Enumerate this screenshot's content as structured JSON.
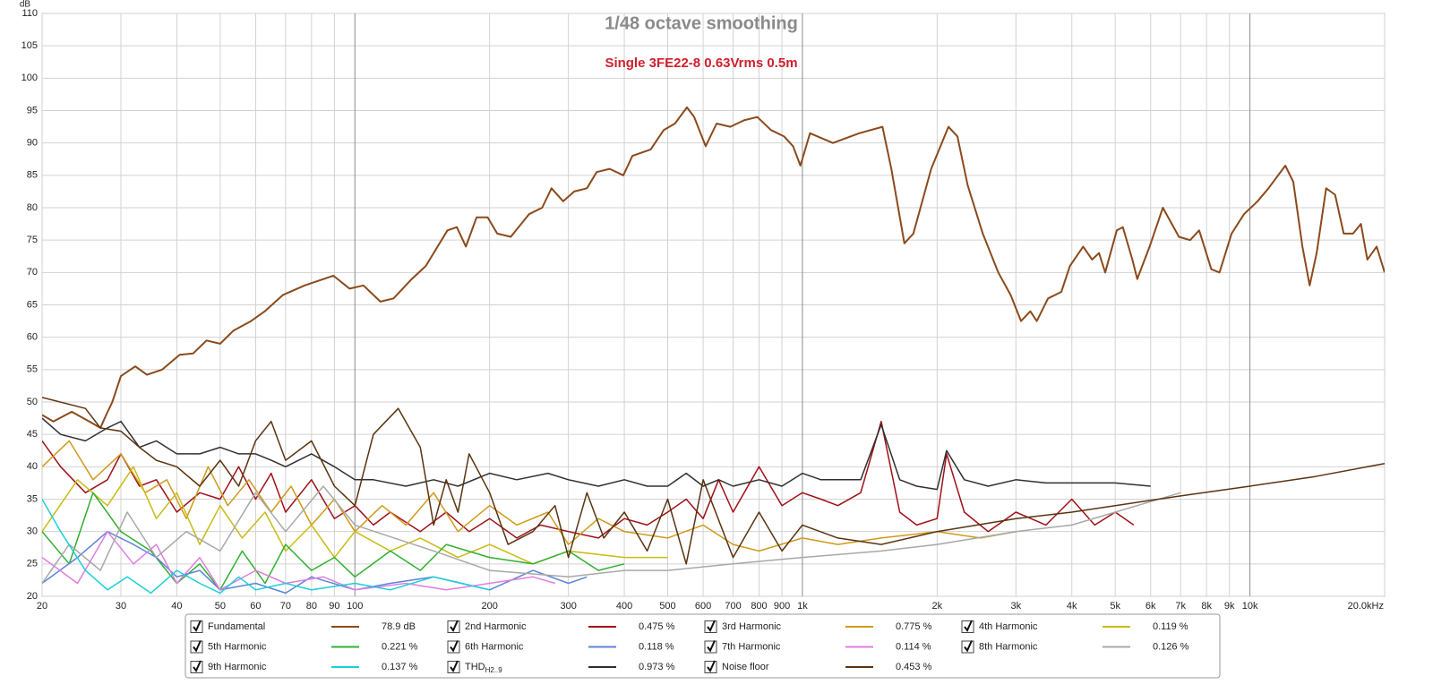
{
  "chart_data": {
    "type": "line",
    "title": "1/48 octave smoothing",
    "subtitle": "Single 3FE22-8 0.63Vrms  0.5m",
    "y_label": "dB",
    "xscale": "log",
    "grid": true,
    "xlim": [
      20,
      20000
    ],
    "ylim": [
      20,
      110
    ],
    "xticks": [
      20,
      30,
      40,
      50,
      60,
      70,
      80,
      90,
      100,
      200,
      300,
      400,
      500,
      600,
      700,
      800,
      900,
      {
        "value": 1000,
        "label": "1k"
      },
      {
        "value": 2000,
        "label": "2k"
      },
      {
        "value": 3000,
        "label": "3k"
      },
      {
        "value": 4000,
        "label": "4k"
      },
      {
        "value": 5000,
        "label": "5k"
      },
      {
        "value": 6000,
        "label": "6k"
      },
      {
        "value": 7000,
        "label": "7k"
      },
      {
        "value": 8000,
        "label": "8k"
      },
      {
        "value": 9000,
        "label": "9k"
      },
      {
        "value": 10000,
        "label": "10k"
      },
      {
        "value": 20000,
        "label": "20.0kHz"
      }
    ],
    "yticks": [
      20,
      25,
      30,
      35,
      40,
      45,
      50,
      55,
      60,
      65,
      70,
      75,
      80,
      85,
      90,
      95,
      100,
      105,
      110
    ],
    "series": [
      {
        "name": "Fundamental",
        "color": "#8b4a1c",
        "checked": true,
        "summary": {
          "value": 78.9,
          "label": "78.9 dB"
        },
        "x": [
          20,
          21.2,
          23.3,
          25.5,
          27,
          27.8,
          28.7,
          30,
          32.3,
          34.3,
          37.1,
          40.6,
          43.5,
          46.6,
          50,
          53.5,
          58.6,
          62.9,
          69,
          77.2,
          89.5,
          97.3,
          104.5,
          114,
          122,
          134,
          144,
          161,
          169,
          177,
          187,
          198,
          208,
          223,
          245,
          262,
          275,
          292,
          309,
          330,
          347,
          371,
          398,
          417,
          458,
          490,
          519,
          552,
          573,
          608,
          643,
          690,
          740,
          793,
          850,
          910,
          953,
          990,
          1040,
          1170,
          1340,
          1510,
          1580,
          1690,
          1770,
          1940,
          2120,
          2220,
          2340,
          2530,
          2740,
          2920,
          3080,
          3230,
          3340,
          3540,
          3790,
          3960,
          4240,
          4440,
          4600,
          4750,
          5040,
          5200,
          5460,
          5600,
          5970,
          6390,
          6940,
          7350,
          7700,
          8200,
          8550,
          9100,
          9700,
          10400,
          11000,
          12000,
          12500,
          13100,
          13600,
          14100,
          14800,
          15500,
          16200,
          17000,
          17700,
          18300,
          19200,
          20000
        ],
        "values": [
          48,
          47,
          48.5,
          47,
          46,
          48,
          50,
          54,
          55.5,
          54.2,
          55,
          57.3,
          57.5,
          59.5,
          59,
          61,
          62.5,
          64,
          66.5,
          68,
          69.5,
          67.5,
          68,
          65.5,
          66,
          69,
          71,
          76.5,
          77,
          74,
          78.5,
          78.5,
          76,
          75.5,
          79,
          80,
          83,
          81,
          82.5,
          83,
          85.5,
          86,
          85,
          88,
          89,
          92,
          93,
          95.5,
          94,
          89.5,
          93,
          92.5,
          93.5,
          94,
          92,
          91,
          89.5,
          86.5,
          91.5,
          90,
          91.5,
          92.5,
          86,
          74.5,
          76,
          86,
          92.5,
          91,
          83.5,
          76,
          70,
          66.5,
          62.5,
          64,
          62.5,
          66,
          67,
          71,
          74,
          72,
          73,
          70,
          76.5,
          77,
          72,
          69,
          74,
          80,
          75.5,
          75,
          76.5,
          70.5,
          70,
          76,
          79,
          81,
          83,
          86.5,
          84,
          74,
          68,
          73,
          83,
          82,
          76,
          76,
          77.5,
          72,
          74,
          70
        ]
      },
      {
        "name": "2nd Harmonic",
        "color": "#a01018",
        "checked": true,
        "summary": {
          "value": 0.475,
          "label": "0.475 %"
        },
        "x": [
          20,
          22,
          25,
          28,
          30,
          33,
          36,
          40,
          45,
          50,
          55,
          60,
          65,
          70,
          80,
          90,
          100,
          110,
          120,
          140,
          160,
          180,
          200,
          230,
          260,
          300,
          350,
          400,
          450,
          500,
          550,
          600,
          650,
          700,
          800,
          900,
          1000,
          1100,
          1200,
          1350,
          1500,
          1650,
          1800,
          2000,
          2100,
          2300,
          2600,
          3000,
          3500,
          4000,
          4500,
          5000,
          5500
        ],
        "values": [
          44,
          40,
          36,
          38,
          42,
          37,
          38,
          33,
          36,
          35,
          40,
          35,
          39,
          33,
          38,
          32,
          34,
          31,
          33,
          30,
          33,
          30,
          32,
          29,
          31,
          30,
          29,
          32,
          31,
          33,
          35,
          32,
          38,
          33,
          40,
          34,
          36,
          35,
          34,
          36,
          47,
          33,
          31,
          32,
          42,
          33,
          30,
          33,
          31,
          35,
          31,
          33,
          31
        ]
      },
      {
        "name": "3rd Harmonic",
        "color": "#d09a1a",
        "checked": true,
        "summary": {
          "value": 0.775,
          "label": "0.775 %"
        },
        "x": [
          20,
          23,
          26,
          30,
          34,
          38,
          42,
          47,
          52,
          58,
          65,
          72,
          80,
          90,
          100,
          115,
          130,
          150,
          170,
          200,
          230,
          270,
          300,
          350,
          400,
          500,
          600,
          700,
          800,
          1000,
          1200,
          1500,
          2000,
          2500,
          3000
        ],
        "values": [
          40,
          44,
          38,
          42,
          36,
          38,
          32,
          40,
          34,
          38,
          33,
          37,
          31,
          35,
          30,
          34,
          31,
          36,
          30,
          34,
          31,
          33,
          28,
          32,
          30,
          29,
          31,
          28,
          27,
          29,
          28,
          29,
          30,
          29,
          30
        ]
      },
      {
        "name": "4th Harmonic",
        "color": "#c8bc14",
        "checked": true,
        "summary": {
          "value": 0.119,
          "label": "0.119 %"
        },
        "x": [
          20,
          24,
          28,
          32,
          36,
          40,
          45,
          50,
          56,
          63,
          70,
          80,
          90,
          100,
          120,
          140,
          170,
          200,
          250,
          300,
          400,
          500
        ],
        "values": [
          30,
          38,
          34,
          40,
          32,
          36,
          28,
          34,
          29,
          33,
          27,
          31,
          26,
          30,
          27,
          29,
          26,
          28,
          25,
          27,
          26,
          26
        ]
      },
      {
        "name": "5th Harmonic",
        "color": "#30b030",
        "checked": true,
        "summary": {
          "value": 0.221,
          "label": "0.221 %"
        },
        "x": [
          20,
          23,
          26,
          30,
          35,
          40,
          45,
          50,
          56,
          63,
          70,
          80,
          90,
          100,
          120,
          140,
          160,
          200,
          250,
          300,
          350,
          400
        ],
        "values": [
          30,
          25,
          36,
          30,
          27,
          22,
          25,
          21,
          27,
          22,
          28,
          24,
          26,
          23,
          27,
          24,
          28,
          26,
          25,
          27,
          24,
          25
        ]
      },
      {
        "name": "6th Harmonic",
        "color": "#5b84d8",
        "checked": true,
        "summary": {
          "value": 0.118,
          "label": "0.118 %"
        },
        "x": [
          20,
          24,
          28,
          32,
          36,
          40,
          45,
          50,
          60,
          70,
          80,
          100,
          120,
          150,
          200,
          250,
          300,
          330
        ],
        "values": [
          22,
          26,
          30,
          28,
          26,
          23,
          24,
          21,
          22,
          20.5,
          23,
          21,
          22,
          23,
          21,
          24,
          22,
          23
        ]
      },
      {
        "name": "7th Harmonic",
        "color": "#e07ee0",
        "checked": true,
        "summary": {
          "value": 0.114,
          "label": "0.114 %"
        },
        "x": [
          20,
          24,
          28,
          32,
          36,
          40,
          45,
          50,
          60,
          70,
          85,
          100,
          130,
          160,
          200,
          250,
          280
        ],
        "values": [
          26,
          22,
          30,
          25,
          28,
          22,
          26,
          21,
          24,
          22,
          23,
          21,
          22,
          21,
          22,
          23,
          22
        ]
      },
      {
        "name": "8th Harmonic",
        "color": "#a8a8a8",
        "checked": true,
        "summary": {
          "value": 0.126,
          "label": "0.126 %"
        },
        "x": [
          20,
          23,
          27,
          31,
          36,
          42,
          50,
          60,
          70,
          85,
          100,
          150,
          200,
          300,
          400,
          500,
          700,
          1000,
          1500,
          2000,
          3000,
          4000,
          5000,
          7000
        ],
        "values": [
          22,
          28,
          24,
          33,
          26,
          30,
          27,
          36,
          30,
          37,
          31,
          27,
          24,
          23,
          24,
          24,
          25,
          26,
          27,
          28,
          30,
          31,
          33,
          36
        ]
      },
      {
        "name": "9th Harmonic",
        "color": "#1ccfd8",
        "checked": true,
        "summary": {
          "value": 0.137,
          "label": "0.137 %"
        },
        "x": [
          20,
          22,
          25,
          28,
          31,
          35,
          40,
          45,
          50,
          55,
          60,
          70,
          80,
          100,
          120,
          150,
          200
        ],
        "values": [
          35,
          30,
          24,
          21,
          23,
          20.5,
          24,
          22,
          20.5,
          23,
          21,
          22,
          21,
          22,
          21,
          23,
          21
        ]
      },
      {
        "name": "THD",
        "subscript": "H2..9",
        "color": "#303030",
        "checked": true,
        "summary": {
          "value": 0.973,
          "label": "0.973 %"
        },
        "x": [
          20,
          22,
          25,
          28,
          30,
          33,
          36,
          40,
          45,
          50,
          55,
          60,
          65,
          70,
          80,
          90,
          100,
          110,
          130,
          150,
          170,
          200,
          230,
          270,
          300,
          350,
          400,
          450,
          500,
          550,
          600,
          650,
          700,
          800,
          900,
          1000,
          1100,
          1200,
          1350,
          1500,
          1650,
          1800,
          2000,
          2100,
          2300,
          2600,
          3000,
          3500,
          4000,
          5000,
          6000
        ],
        "values": [
          47.5,
          45,
          44,
          46,
          47,
          43,
          44,
          42,
          42,
          43,
          42,
          42,
          41,
          40,
          42,
          40,
          38,
          38,
          37,
          38,
          37,
          39,
          38,
          39,
          38,
          37,
          38,
          37,
          37,
          39,
          37,
          38,
          37,
          38,
          37,
          39,
          38,
          38,
          38,
          46.5,
          38,
          37,
          36.5,
          42.5,
          38,
          37,
          38,
          37.5,
          37.5,
          37.5,
          37
        ]
      },
      {
        "name": "Noise floor",
        "color": "#5a3410",
        "checked": true,
        "summary": {
          "value": 0.453,
          "label": "0.453 %"
        },
        "x": [
          20,
          25,
          27,
          30,
          33,
          36,
          40,
          45,
          50,
          55,
          60,
          65,
          70,
          80,
          90,
          100,
          110,
          125,
          140,
          150,
          160,
          170,
          180,
          200,
          220,
          250,
          280,
          300,
          330,
          360,
          400,
          450,
          500,
          550,
          600,
          700,
          800,
          900,
          1000,
          1200,
          1500,
          2000,
          3000,
          4000,
          5000,
          7000,
          10000,
          14000,
          20000
        ],
        "values": [
          50.7,
          49,
          46,
          45.5,
          43,
          41,
          40,
          37,
          41,
          37,
          44,
          47,
          41,
          44,
          37,
          34,
          45,
          49,
          43,
          31,
          38,
          33,
          42,
          36,
          28,
          30,
          34,
          26,
          36,
          29,
          33,
          27,
          35,
          25,
          38,
          26,
          33,
          27,
          31,
          29,
          28,
          30,
          32,
          33,
          34,
          35.5,
          37,
          38.5,
          40.5
        ]
      }
    ]
  }
}
